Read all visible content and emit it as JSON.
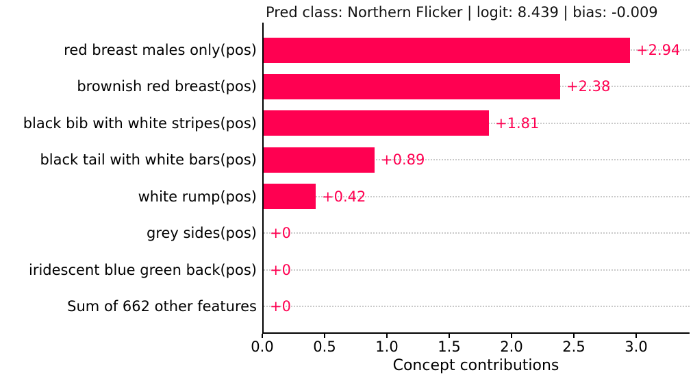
{
  "figure": {
    "title": "Pred class: Northern Flicker | logit: 8.439 | bias: -0.009",
    "xlabel": "Concept contributions"
  },
  "chart_data": {
    "type": "bar",
    "orientation": "horizontal",
    "title": "Pred class: Northern Flicker | logit: 8.439 | bias: -0.009",
    "xlabel": "Concept contributions",
    "ylabel": "",
    "categories": [
      "red breast males only(pos)",
      "brownish red breast(pos)",
      "black bib with white stripes(pos)",
      "black tail with white bars(pos)",
      "white rump(pos)",
      "grey sides(pos)",
      "iridescent blue green back(pos)",
      "Sum of 662 other features"
    ],
    "values": [
      2.94,
      2.38,
      1.81,
      0.89,
      0.42,
      0,
      0,
      0
    ],
    "value_labels": [
      "+2.94",
      "+2.38",
      "+1.81",
      "+0.89",
      "+0.42",
      "+0",
      "+0",
      "+0"
    ],
    "xticks": [
      0.0,
      0.5,
      1.0,
      1.5,
      2.0,
      2.5,
      3.0
    ],
    "xtick_labels": [
      "0.0",
      "0.5",
      "1.0",
      "1.5",
      "2.0",
      "2.5",
      "3.0"
    ],
    "xlim": [
      0,
      3.43
    ],
    "grid": "horizontal-dotted",
    "legend": null,
    "colors": {
      "bar": "#FF0051",
      "value_label": "#FF0051",
      "gridline": "#c9c9c9",
      "axis": "#000000",
      "text": "#000000",
      "background": "#ffffff"
    }
  }
}
